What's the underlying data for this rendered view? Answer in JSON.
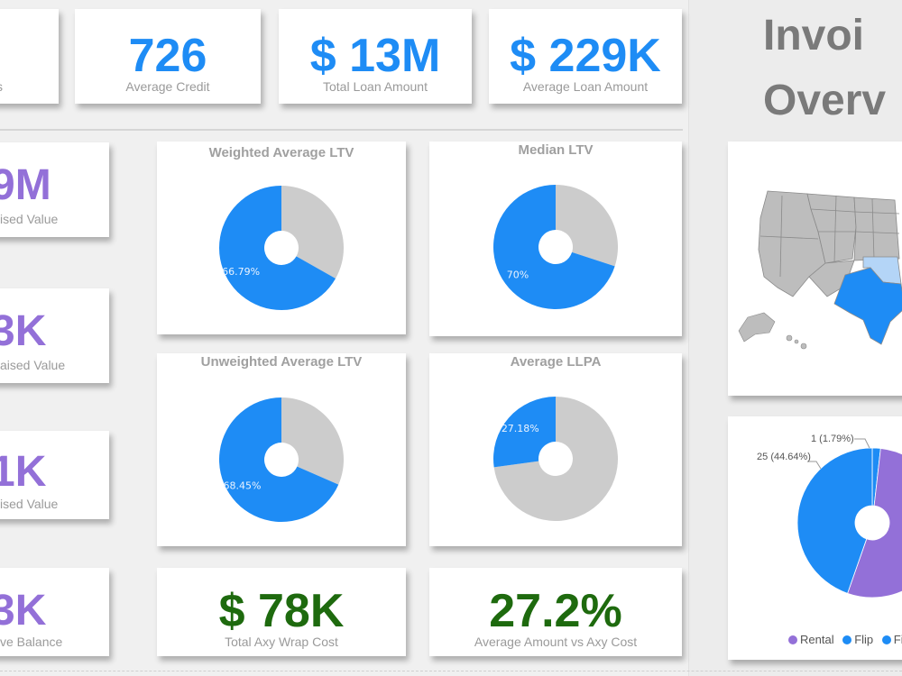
{
  "title": {
    "line1": "Invoi",
    "line2": "Overv"
  },
  "kpis_top": [
    {
      "value": "",
      "label": "s"
    },
    {
      "value": "726",
      "label": "Average Credit"
    },
    {
      "value": "$ 13M",
      "label": "Total Loan Amount"
    },
    {
      "value": "$ 229K",
      "label": "Average Loan Amount"
    }
  ],
  "kpis_left": [
    {
      "value": "9M",
      "label": "ised Value"
    },
    {
      "value": "3K",
      "label": "aised Value"
    },
    {
      "value": "1K",
      "label": "ised Value"
    },
    {
      "value": "3K",
      "label": "ve Balance"
    }
  ],
  "kpis_bottom": [
    {
      "value": "$ 78K",
      "label": "Total Axy Wrap Cost"
    },
    {
      "value": "27.2%",
      "label": "Average Amount vs Axy Cost"
    }
  ],
  "colors": {
    "blue": "#1e8cf5",
    "grey": "#cccccc",
    "purple": "#9370d8",
    "green": "#1e6a0e"
  },
  "chart_data": [
    {
      "type": "pie",
      "title": "Weighted Average LTV",
      "values": [
        66.79,
        33.21
      ],
      "labels": [
        "66.79%",
        ""
      ]
    },
    {
      "type": "pie",
      "title": "Median LTV",
      "values": [
        70,
        30
      ],
      "labels": [
        "70%",
        ""
      ]
    },
    {
      "type": "pie",
      "title": "Unweighted Average LTV",
      "values": [
        68.45,
        31.55
      ],
      "labels": [
        "68.45%",
        ""
      ]
    },
    {
      "type": "pie",
      "title": "Average LLPA",
      "values": [
        27.18,
        72.82
      ],
      "labels": [
        "27.18%",
        ""
      ]
    },
    {
      "type": "pie",
      "title": "",
      "categories": [
        "Rental",
        "Flip",
        "Fix"
      ],
      "values": [
        30,
        25,
        1
      ],
      "data_labels": [
        "",
        "25 (44.64%)",
        "1 (1.79%)"
      ],
      "legend": [
        "Rental",
        "Flip",
        "Fix"
      ],
      "legend_position": "bottom"
    }
  ],
  "map": {
    "highlighted_states": [
      "Texas",
      "Oklahoma"
    ]
  }
}
